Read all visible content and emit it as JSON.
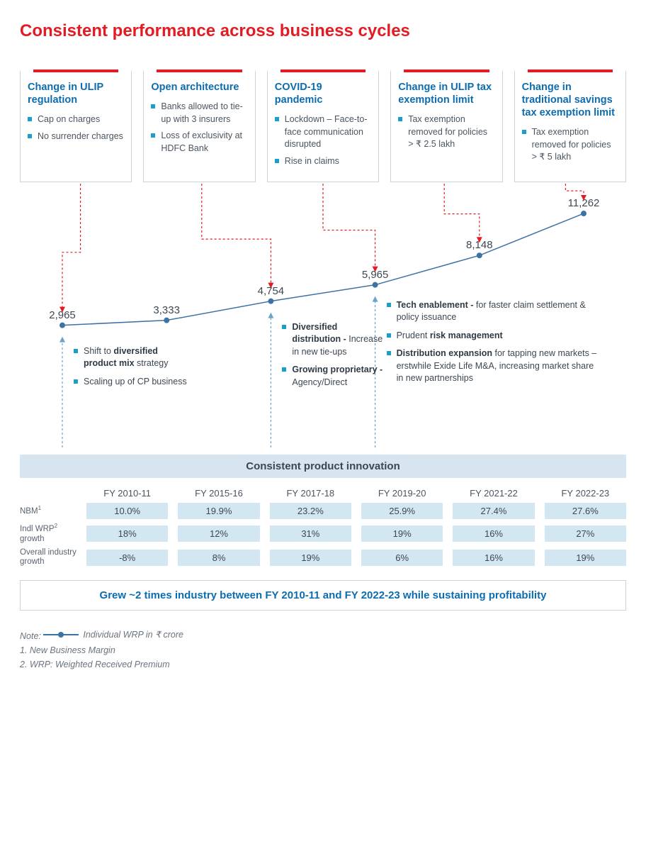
{
  "title": "Consistent performance across business cycles",
  "colors": {
    "accent_red": "#e31b23",
    "link_blue": "#0c6cb0",
    "bullet_teal": "#1aa0c8",
    "line_blue": "#3d72a4",
    "band_bg": "#d6e5ef",
    "cell_bg": "#d2e7f2",
    "box_border": "#c9d4df",
    "text": "#3d4752"
  },
  "events": [
    {
      "title": "Change in ULIP regulation",
      "bullets": [
        "Cap on charges",
        "No surrender charges"
      ]
    },
    {
      "title": "Open architecture",
      "bullets": [
        "Banks allowed to tie-up with 3 insurers",
        "Loss of exclusivity at HDFC Bank"
      ]
    },
    {
      "title": "COVID-19 pandemic",
      "bullets": [
        "Lockdown – Face-to-face communication disrupted",
        "Rise in claims"
      ]
    },
    {
      "title": "Change in ULIP tax exemption limit",
      "bullets": [
        "Tax exemption removed for policies > ₹ 2.5 lakh"
      ]
    },
    {
      "title": "Change in traditional savings tax exemption limit",
      "bullets": [
        "Tax exemption removed for policies > ₹ 5 lakh"
      ]
    }
  ],
  "chart": {
    "type": "line",
    "x_labels": [
      "FY 2010-11",
      "FY 2015-16",
      "FY 2017-18",
      "FY 2019-20",
      "FY 2021-22",
      "FY 2022-23"
    ],
    "values": [
      2965,
      3333,
      4754,
      5965,
      8148,
      11262
    ],
    "value_labels": [
      "2,965",
      "3,333",
      "4,754",
      "5,965",
      "8,148",
      "11,262"
    ],
    "ymin": 2000,
    "ymax": 12000,
    "line_color": "#3d72a4",
    "marker_color": "#3d72a4",
    "marker_radius": 4,
    "line_width": 1.5,
    "red_arrows_from_boxes_to_points": [
      0,
      1,
      2,
      3,
      4,
      5
    ],
    "blue_arrows_from_annot_to_points": [
      0,
      2,
      3
    ]
  },
  "lower_annotations": [
    {
      "attach_point": 0,
      "items": [
        {
          "html": "Shift to <b>diversified product mix</b> strategy"
        },
        {
          "html": "Scaling up of CP business"
        }
      ]
    },
    {
      "attach_point": 2,
      "items": [
        {
          "html": "<b>Diversified distribution -</b> Increase in new tie-ups"
        },
        {
          "html": "<b>Growing proprietary -</b> Agency/Direct"
        }
      ]
    },
    {
      "attach_point": 3,
      "items": [
        {
          "html": "<b>Tech enablement -</b> for faster claim settlement & policy issuance"
        },
        {
          "html": "Prudent <b>risk management</b>"
        },
        {
          "html": "<b>Distribution expansion</b> for tapping new markets – erstwhile Exide Life M&A, increasing market share in new partnerships"
        }
      ]
    }
  ],
  "band_label": "Consistent product innovation",
  "table": {
    "years": [
      "FY 2010-11",
      "FY 2015-16",
      "FY 2017-18",
      "FY 2019-20",
      "FY 2021-22",
      "FY 2022-23"
    ],
    "rows": [
      {
        "label": "NBM¹",
        "cells": [
          "10.0%",
          "19.9%",
          "23.2%",
          "25.9%",
          "27.4%",
          "27.6%"
        ]
      },
      {
        "label": "Indl WRP² growth",
        "cells": [
          "18%",
          "12%",
          "31%",
          "19%",
          "16%",
          "27%"
        ]
      },
      {
        "label": "Overall industry growth",
        "cells": [
          "-8%",
          "8%",
          "19%",
          "6%",
          "16%",
          "19%"
        ]
      }
    ]
  },
  "summary": "Grew ~2 times industry between FY 2010-11 and FY 2022-23 while sustaining profitability",
  "notes": {
    "lead": "Note:",
    "legend": "Individual WRP in ₹ crore",
    "n1": "1. New Business Margin",
    "n2": "2. WRP: Weighted Received Premium"
  }
}
